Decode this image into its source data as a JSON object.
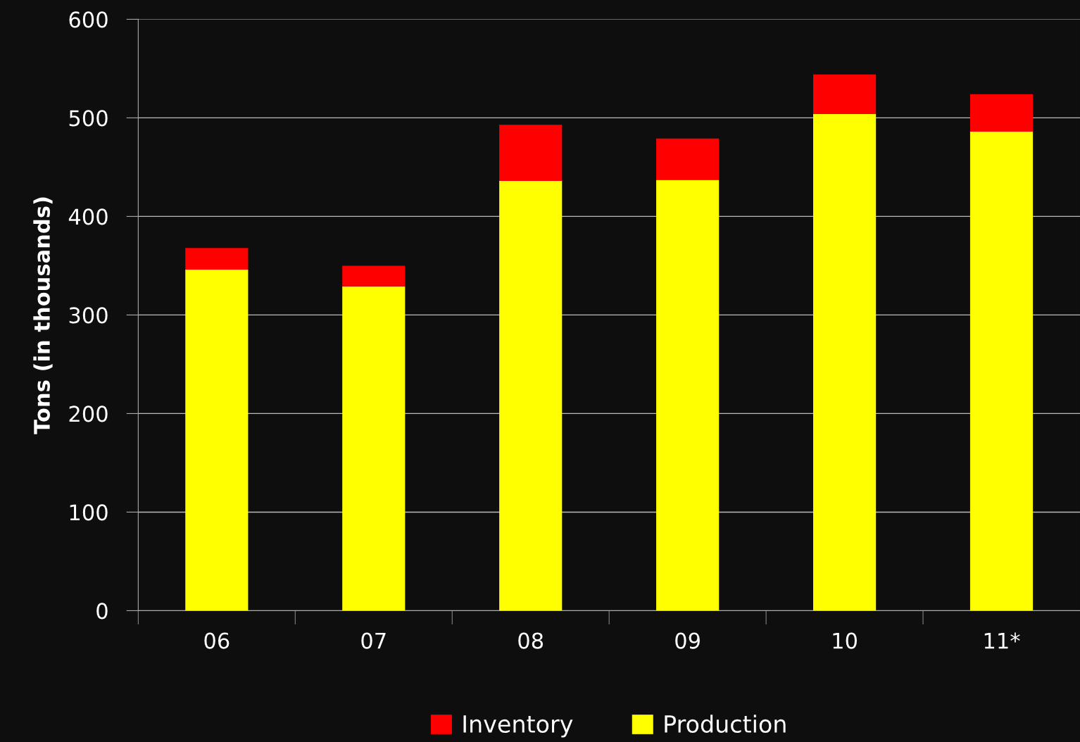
{
  "chart_data": {
    "type": "bar",
    "stacked": true,
    "ylabel": "Tons (in thousands)",
    "categories": [
      "06",
      "07",
      "08",
      "09",
      "10",
      "11*"
    ],
    "series": [
      {
        "name": "Production",
        "color": "#ffff00",
        "values": [
          346,
          329,
          436,
          437,
          504,
          486
        ]
      },
      {
        "name": "Inventory",
        "color": "#ff0000",
        "values": [
          22,
          21,
          57,
          42,
          40,
          38
        ]
      }
    ],
    "ylim": [
      0,
      600
    ],
    "yticks": [
      0,
      100,
      200,
      300,
      400,
      500,
      600
    ],
    "grid": "y",
    "legend": "bottom"
  }
}
